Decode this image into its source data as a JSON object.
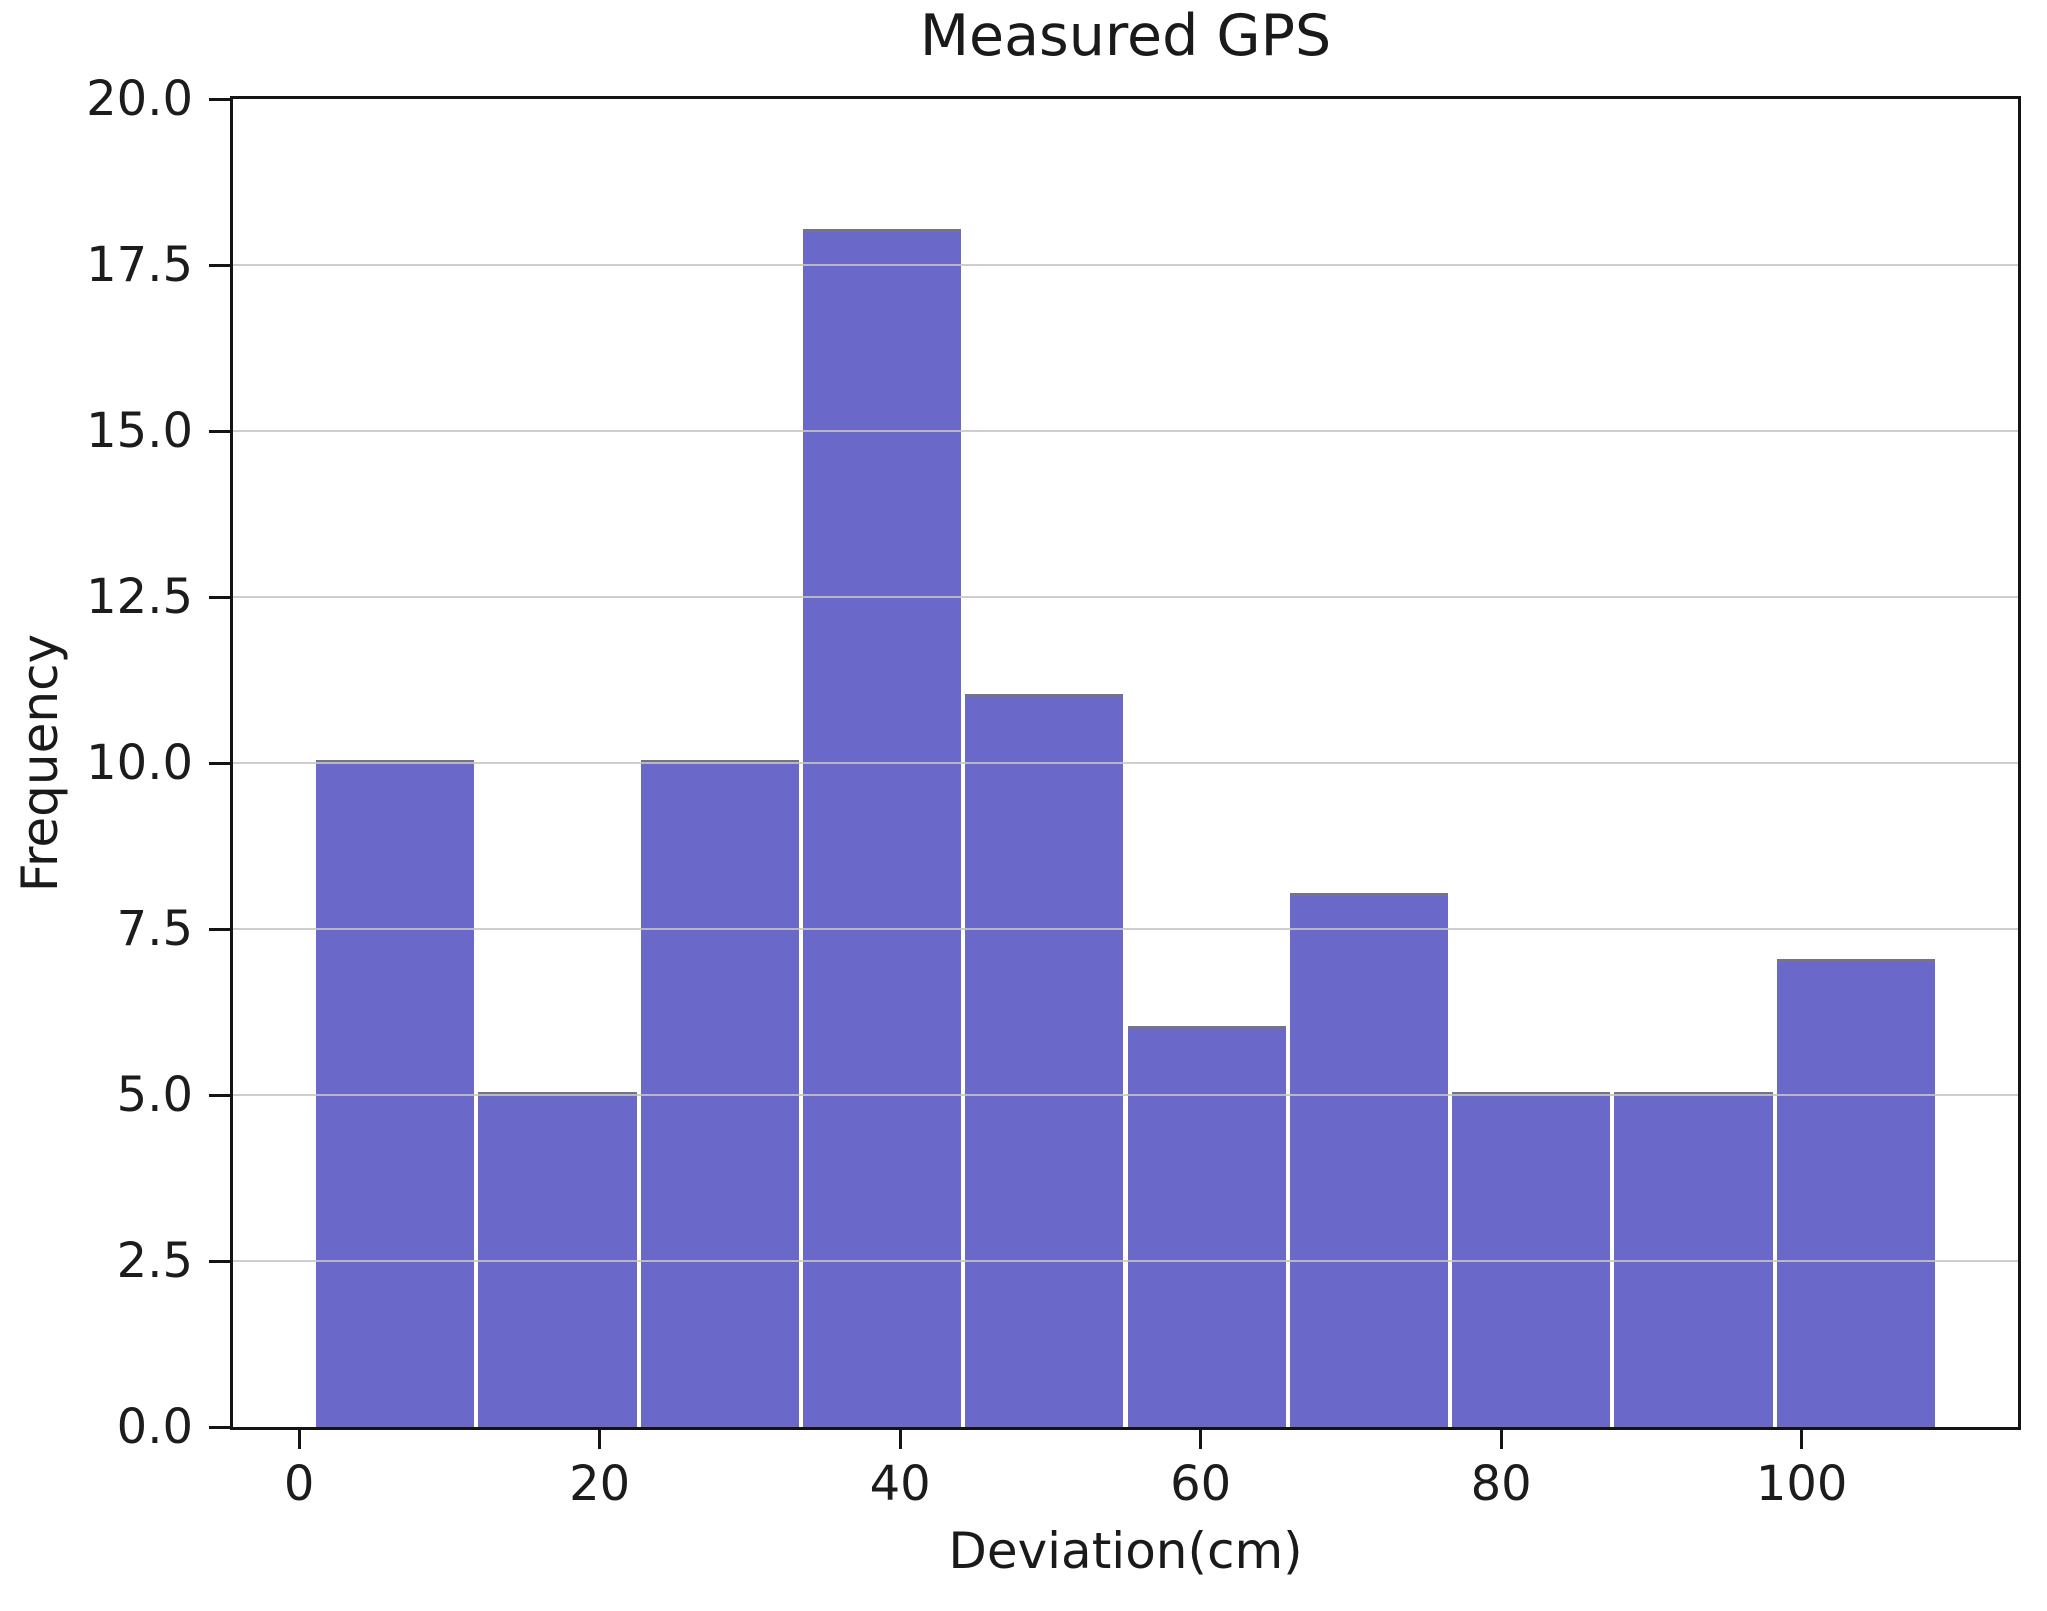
{
  "chart_data": {
    "type": "bar",
    "subtype": "histogram",
    "title": "Measured GPS",
    "xlabel": "Deviation(cm)",
    "ylabel": "Frequency",
    "bin_edges": [
      1.0,
      11.8,
      22.6,
      33.4,
      44.2,
      55.0,
      65.8,
      76.6,
      87.4,
      98.2,
      109.0
    ],
    "frequencies": [
      10,
      5,
      10,
      18,
      11,
      6,
      8,
      5,
      5,
      7
    ],
    "xlim": [
      -4.4,
      114.4
    ],
    "ylim": [
      0,
      20
    ],
    "xticks": [
      0,
      20,
      40,
      60,
      80,
      100
    ],
    "xtick_labels": [
      "0",
      "20",
      "40",
      "60",
      "80",
      "100"
    ],
    "yticks": [
      0.0,
      2.5,
      5.0,
      7.5,
      10.0,
      12.5,
      15.0,
      17.5,
      20.0
    ],
    "ytick_labels": [
      "0.0",
      "2.5",
      "5.0",
      "7.5",
      "10.0",
      "12.5",
      "15.0",
      "17.5",
      "20.0"
    ],
    "grid": "horizontal",
    "grid_over_bars": true,
    "legend": "none",
    "colors": {
      "bar_fill": "#6a68c9",
      "bar_top_edge": "#75738c",
      "grid_line": "#c6c6c6",
      "spine": "#141414",
      "text": "#1a1a1a",
      "background": "#ffffff"
    }
  }
}
